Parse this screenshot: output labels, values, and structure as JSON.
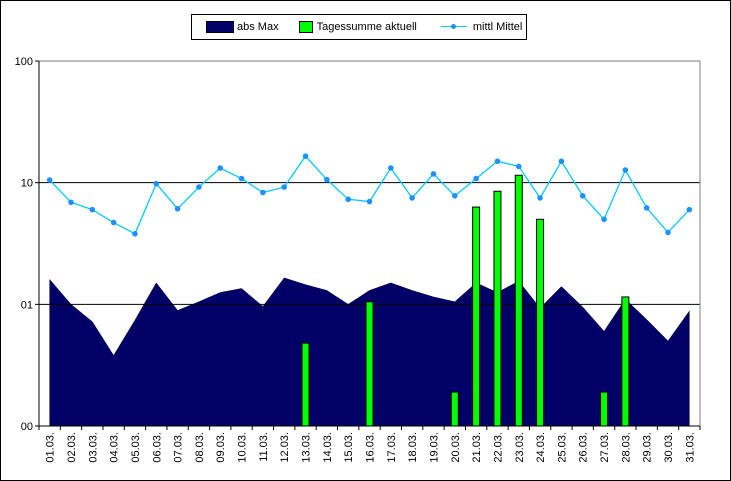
{
  "chart_data": {
    "type": "bar",
    "y_scale": "log",
    "ylim": [
      0.1,
      100
    ],
    "y_ticks": [
      {
        "value": 100,
        "label": "100"
      },
      {
        "value": 10,
        "label": "10"
      },
      {
        "value": 1,
        "label": "01"
      },
      {
        "value": 0.1,
        "label": "00"
      }
    ],
    "grid": "horizontal",
    "legend_position": "top",
    "categories": [
      "01.03.",
      "02.03.",
      "03.03.",
      "04.03.",
      "05.03.",
      "06.03.",
      "07.03.",
      "08.03.",
      "09.03.",
      "10.03.",
      "11.03.",
      "12.03.",
      "13.03.",
      "14.03.",
      "15.03.",
      "16.03.",
      "17.03.",
      "18.03.",
      "19.03.",
      "20.03.",
      "21.03.",
      "22.03.",
      "23.03.",
      "24.03.",
      "25.03.",
      "26.03.",
      "27.03.",
      "28.03.",
      "29.03.",
      "30.03.",
      "31.03."
    ],
    "series": [
      {
        "name": "abs Max",
        "kind": "area",
        "color": "#000066",
        "values": [
          1.6,
          1.0,
          0.72,
          0.38,
          0.74,
          1.5,
          0.89,
          1.05,
          1.25,
          1.35,
          0.96,
          1.65,
          1.45,
          1.3,
          1.0,
          1.3,
          1.5,
          1.3,
          1.15,
          1.05,
          1.5,
          1.25,
          1.55,
          0.93,
          1.4,
          0.95,
          0.6,
          1.1,
          0.75,
          0.5,
          0.88
        ]
      },
      {
        "name": "Tagessumme aktuell",
        "kind": "bar",
        "color": "#00ff00",
        "values": [
          null,
          null,
          null,
          null,
          null,
          null,
          null,
          null,
          null,
          null,
          null,
          null,
          0.48,
          null,
          null,
          1.05,
          null,
          null,
          null,
          0.19,
          6.3,
          8.5,
          11.5,
          5.0,
          null,
          null,
          0.19,
          1.15,
          null,
          null,
          null
        ]
      },
      {
        "name": "mittl Mittel",
        "kind": "line",
        "color": "#00ccff",
        "values": [
          10.5,
          6.9,
          6.0,
          4.7,
          3.8,
          9.8,
          6.1,
          9.2,
          13.2,
          10.8,
          8.3,
          9.2,
          16.5,
          10.6,
          7.3,
          7.0,
          13.2,
          7.5,
          11.8,
          7.8,
          10.8,
          15.0,
          13.6,
          7.5,
          15.0,
          7.8,
          5.0,
          12.7,
          6.2,
          3.9,
          6.0
        ]
      }
    ]
  }
}
